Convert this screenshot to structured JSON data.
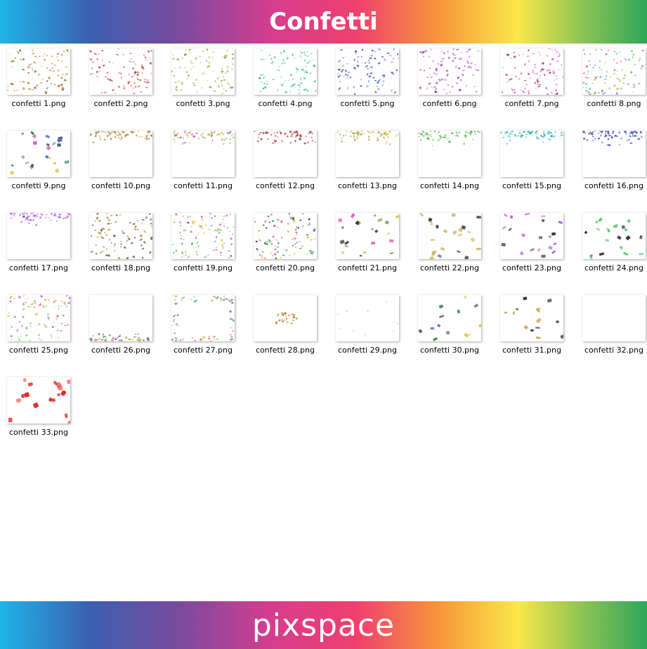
{
  "header": {
    "title": "Confetti"
  },
  "files": [
    "confetti 1.png",
    "confetti 2.png",
    "confetti 3.png",
    "confetti 4.png",
    "confetti 5.png",
    "confetti 6.png",
    "confetti 7.png",
    "confetti 8.png",
    "confetti 9.png",
    "confetti 10.png",
    "confetti 11.png",
    "confetti 12.png",
    "confetti 13.png",
    "confetti 14.png",
    "confetti 15.png",
    "confetti 16.png",
    "confetti 17.png",
    "confetti 18.png",
    "confetti 19.png",
    "confetti 20.png",
    "confetti 21.png",
    "confetti 22.png",
    "confetti 23.png",
    "confetti 24.png",
    "confetti 25.png",
    "confetti 26.png",
    "confetti 27.png",
    "confetti 28.png",
    "confetti 29.png",
    "confetti 30.png",
    "confetti 31.png",
    "confetti 32.png",
    "confetti 33.png"
  ],
  "footer": {
    "brand": "pixspace"
  }
}
